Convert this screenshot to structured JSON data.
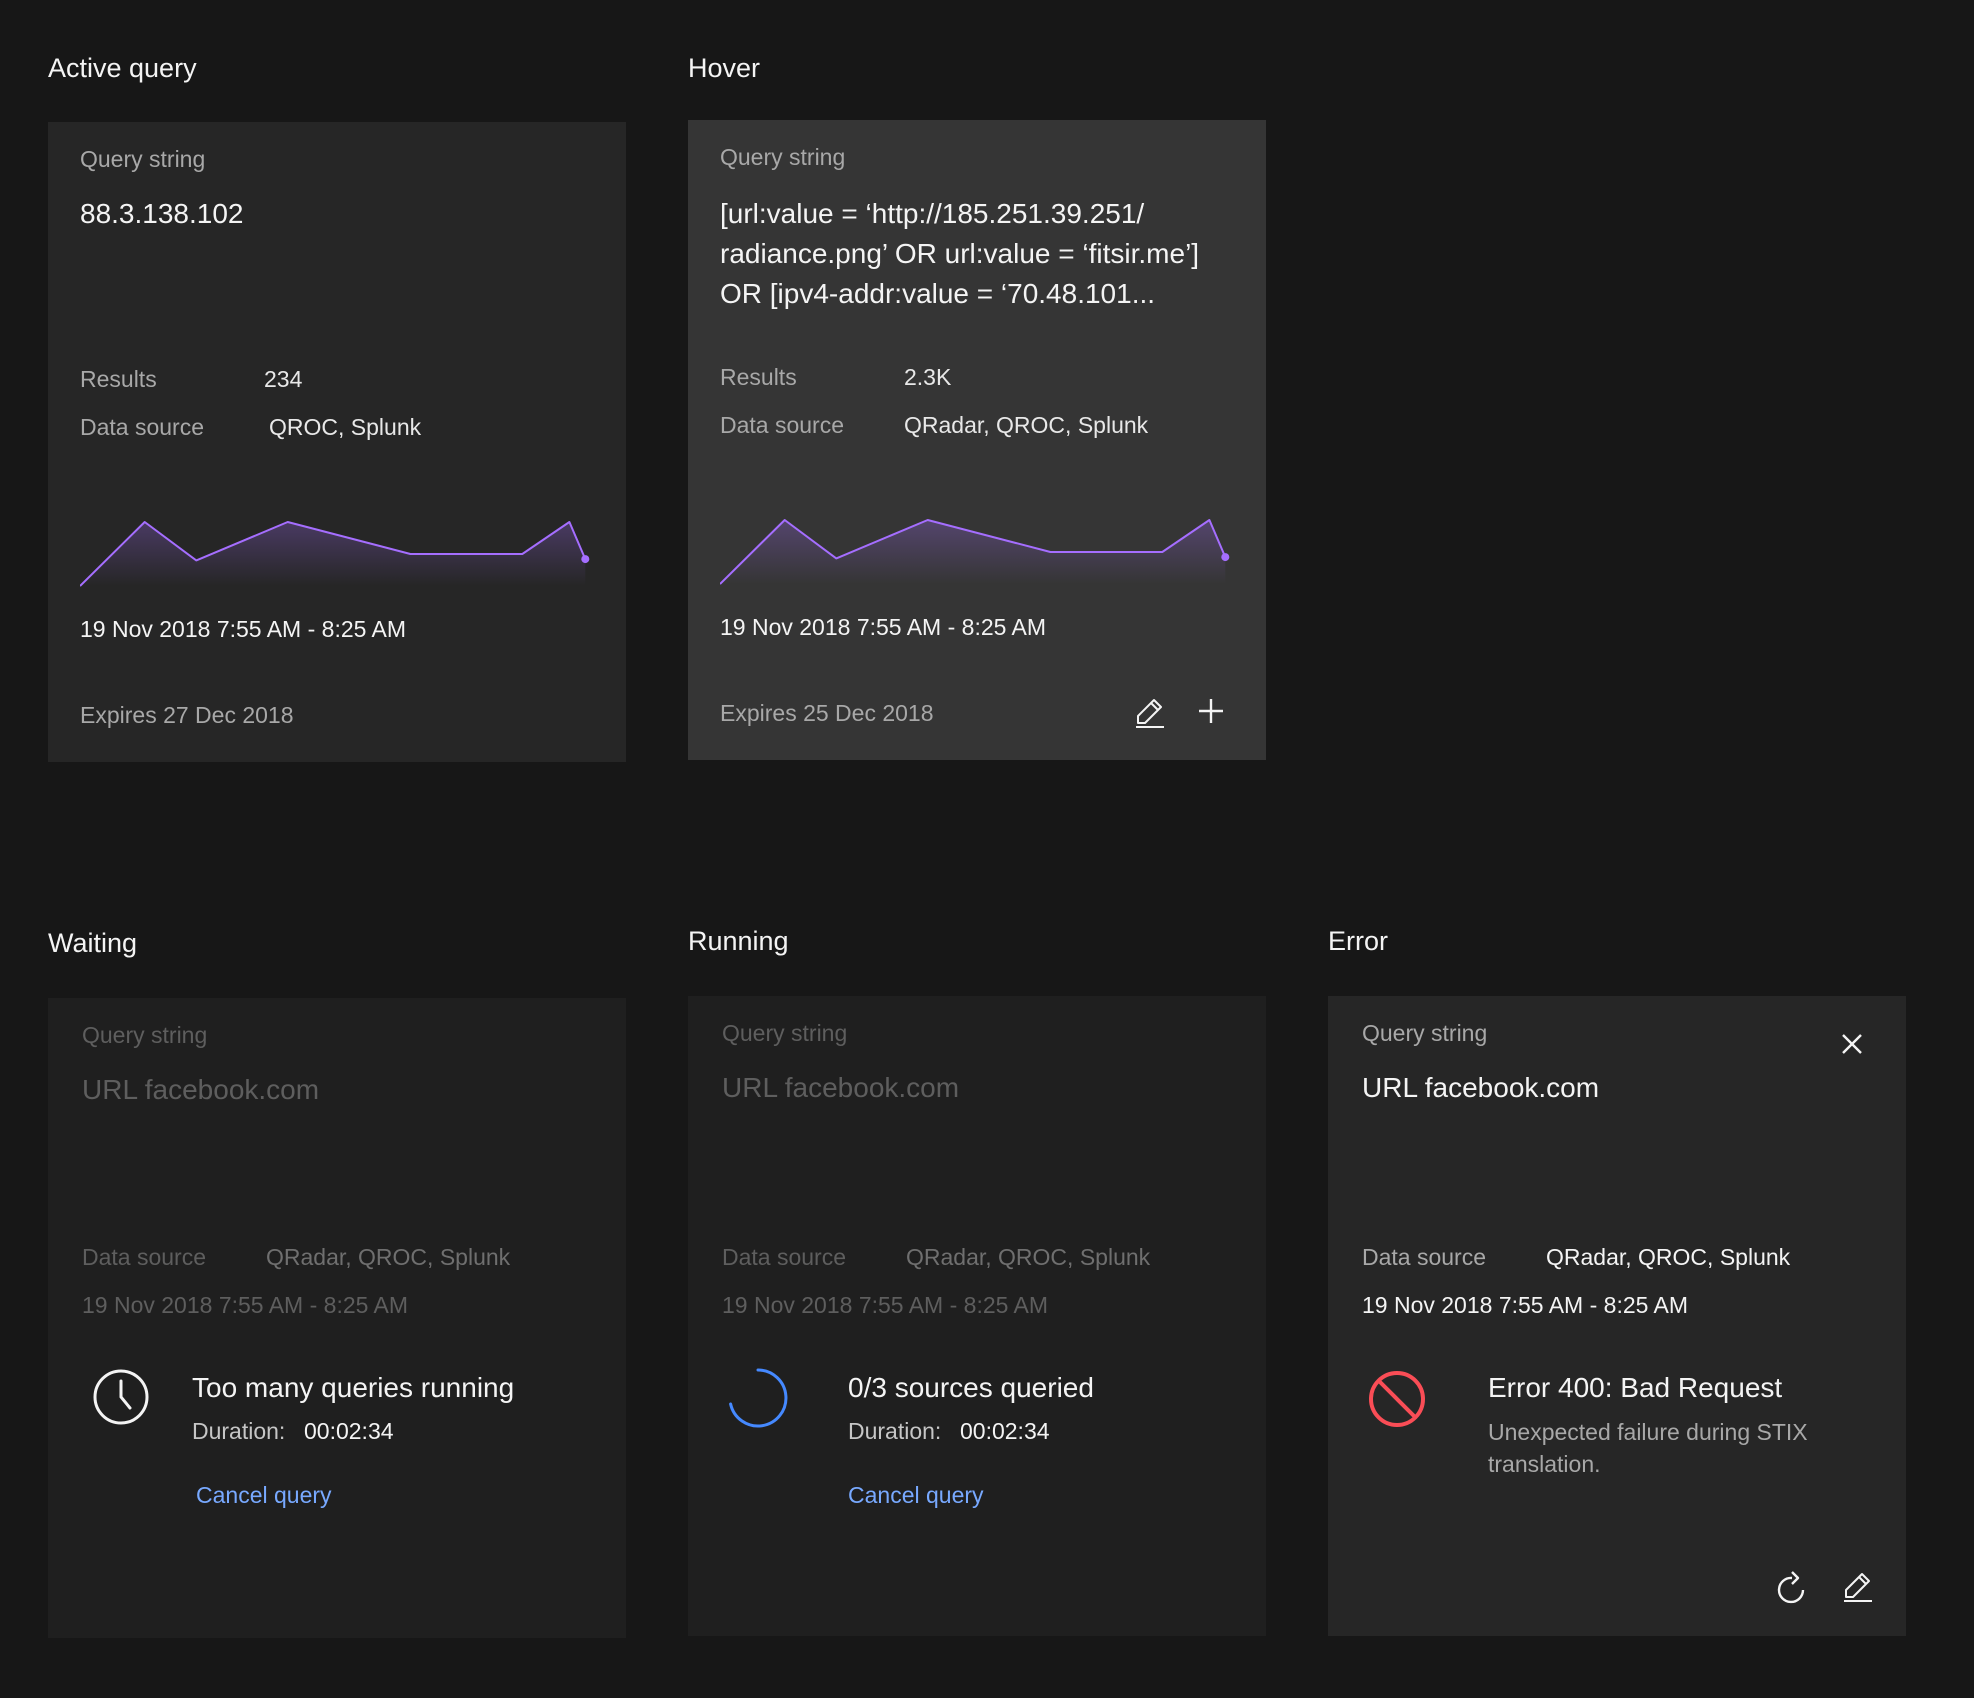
{
  "sections": {
    "active": "Active query",
    "hover": "Hover",
    "waiting": "Waiting",
    "running": "Running",
    "error": "Error"
  },
  "labels": {
    "query_string": "Query string",
    "results": "Results",
    "data_source": "Data source",
    "duration": "Duration:",
    "cancel": "Cancel query"
  },
  "active_card": {
    "query": "88.3.138.102",
    "results": "234",
    "data_source": "QROC, Splunk",
    "time_range": "19 Nov 2018 7:55 AM - 8:25 AM",
    "expires": "Expires 27 Dec 2018"
  },
  "hover_card": {
    "query_lines": [
      "[url:value = ‘http://185.251.39.251/",
      "radiance.png’ OR url:value = ‘fitsir.me’]",
      "OR [ipv4-addr:value = ‘70.48.101..."
    ],
    "results": "2.3K",
    "data_source": "QRadar, QROC, Splunk",
    "time_range": "19 Nov 2018 7:55 AM - 8:25 AM",
    "expires": "Expires 25 Dec 2018",
    "actions": [
      "edit-icon",
      "plus-icon"
    ]
  },
  "waiting_card": {
    "query": "URL facebook.com",
    "data_source": "QRadar, QROC, Splunk",
    "time_range": "19 Nov 2018 7:55 AM - 8:25 AM",
    "status": "Too many queries running",
    "duration": "00:02:34",
    "icon": "clock-icon"
  },
  "running_card": {
    "query": "URL facebook.com",
    "data_source": "QRadar, QROC, Splunk",
    "time_range": "19 Nov 2018 7:55 AM - 8:25 AM",
    "status": "0/3 sources queried",
    "duration": "00:02:34",
    "icon": "spinner-icon"
  },
  "error_card": {
    "query": "URL facebook.com",
    "data_source": "QRadar, QROC, Splunk",
    "time_range": "19 Nov 2018 7:55 AM - 8:25 AM",
    "status": "Error 400: Bad Request",
    "description_lines": [
      "Unexpected failure during STIX",
      "translation."
    ],
    "icon": "no-entry-icon",
    "actions": [
      "close-icon",
      "retry-icon",
      "edit-icon"
    ]
  },
  "colors": {
    "sparkline": "#a56eff",
    "link": "#78a9ff",
    "error": "#fa4d56",
    "spinner": "#4589ff"
  },
  "sparkline_values": [
    0,
    50,
    20,
    50,
    25,
    25,
    50,
    21
  ]
}
